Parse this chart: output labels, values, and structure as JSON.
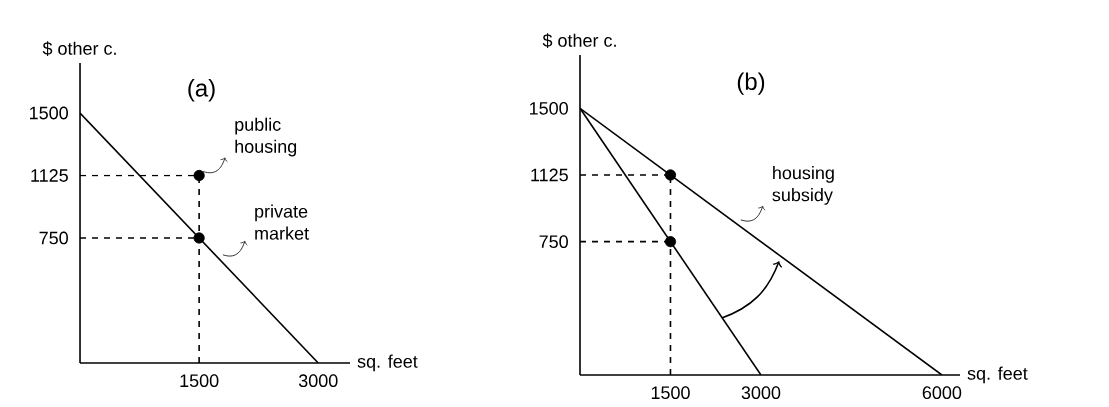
{
  "chart_data": [
    {
      "type": "line",
      "title": "(a)",
      "xlabel": "sq. feet",
      "ylabel": "$ other c.",
      "xlim": [
        0,
        3400
      ],
      "ylim": [
        0,
        1800
      ],
      "xticks": [
        1500,
        3000
      ],
      "yticks": [
        750,
        1125,
        1500
      ],
      "series": [
        {
          "color": "#000000",
          "line_style": "solid",
          "x": [
            0,
            3000
          ],
          "values": [
            1500,
            0
          ]
        },
        {
          "color": "#000000",
          "line_style": "dashed",
          "x": [
            0,
            1500
          ],
          "values": [
            1125,
            1125
          ]
        },
        {
          "color": "#000000",
          "line_style": "dashed",
          "x": [
            0,
            1500
          ],
          "values": [
            750,
            750
          ]
        },
        {
          "color": "#000000",
          "line_style": "dashed",
          "x": [
            1500,
            1500
          ],
          "values": [
            0,
            1125
          ]
        },
        {
          "type": "scatter",
          "color": "#000000",
          "marker": "circle",
          "x": [
            1500,
            1500
          ],
          "values": [
            1125,
            750
          ]
        }
      ],
      "annotations": [
        {
          "text": "public housing",
          "x": 1500,
          "y": 1125
        },
        {
          "text": "private market",
          "x": 1750,
          "y": 625
        }
      ]
    },
    {
      "type": "line",
      "title": "(b)",
      "xlabel": "sq. feet",
      "ylabel": "$ other c.",
      "xlim": [
        0,
        6300
      ],
      "ylim": [
        0,
        1800
      ],
      "xticks": [
        1500,
        3000,
        6000
      ],
      "yticks": [
        750,
        1125,
        1500
      ],
      "series": [
        {
          "color": "#000000",
          "line_style": "solid",
          "x": [
            0,
            3000
          ],
          "values": [
            1500,
            0
          ]
        },
        {
          "color": "#000000",
          "line_style": "solid",
          "x": [
            0,
            6000
          ],
          "values": [
            1500,
            0
          ]
        },
        {
          "color": "#000000",
          "line_style": "dashed",
          "x": [
            0,
            1500
          ],
          "values": [
            1125,
            1125
          ]
        },
        {
          "color": "#000000",
          "line_style": "dashed",
          "x": [
            0,
            1500
          ],
          "values": [
            750,
            750
          ]
        },
        {
          "color": "#000000",
          "line_style": "dashed",
          "x": [
            1500,
            1500
          ],
          "values": [
            0,
            1125
          ]
        },
        {
          "type": "scatter",
          "color": "#000000",
          "marker": "circle",
          "x": [
            1500,
            1500
          ],
          "values": [
            1125,
            750
          ]
        }
      ],
      "annotations": [
        {
          "text": "housing subsidy",
          "x": 2600,
          "y": 850
        }
      ]
    }
  ]
}
